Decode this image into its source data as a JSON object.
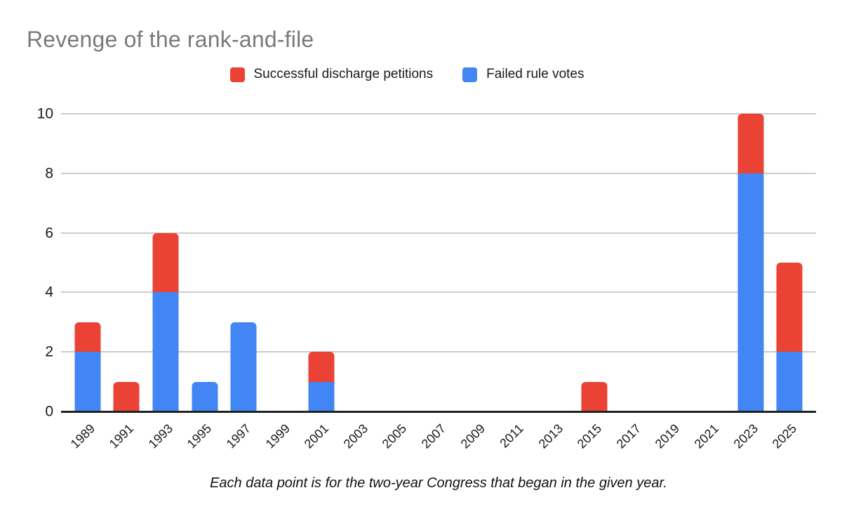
{
  "title": "Revenge of the rank-and-file",
  "footnote": "Each data point is for the two-year Congress that began in the given year.",
  "legend": [
    {
      "label": "Successful discharge petitions",
      "color": "#EA4335"
    },
    {
      "label": "Failed rule votes",
      "color": "#4285F4"
    }
  ],
  "colors": {
    "red": "#EA4335",
    "blue": "#4285F4",
    "gridline": "#CCCCCC",
    "axis_baseline": "#212121",
    "title_gray": "#7A7A7A"
  },
  "chart_data": {
    "type": "bar",
    "stacked": true,
    "title": "Revenge of the rank-and-file",
    "xlabel": "",
    "ylabel": "",
    "categories": [
      "1989",
      "1991",
      "1993",
      "1995",
      "1997",
      "1999",
      "2001",
      "2003",
      "2005",
      "2007",
      "2009",
      "2011",
      "2013",
      "2015",
      "2017",
      "2019",
      "2021",
      "2023",
      "2025"
    ],
    "series": [
      {
        "name": "Failed rule votes",
        "color": "#4285F4",
        "stack_order": "bottom",
        "values": [
          2,
          0,
          4,
          1,
          3,
          0,
          1,
          0,
          0,
          0,
          0,
          0,
          0,
          0,
          0,
          0,
          0,
          8,
          2
        ]
      },
      {
        "name": "Successful discharge petitions",
        "color": "#EA4335",
        "stack_order": "top",
        "values": [
          1,
          1,
          2,
          0,
          0,
          0,
          1,
          0,
          0,
          0,
          0,
          0,
          0,
          1,
          0,
          0,
          0,
          2,
          3
        ]
      }
    ],
    "totals": [
      3,
      1,
      6,
      1,
      3,
      0,
      2,
      0,
      0,
      0,
      0,
      0,
      0,
      1,
      0,
      0,
      0,
      10,
      5
    ],
    "ylim": [
      0,
      10
    ],
    "yticks": [
      0,
      2,
      4,
      6,
      8,
      10
    ],
    "grid": true,
    "legend_position": "top",
    "x_tick_rotation_deg": -45
  }
}
